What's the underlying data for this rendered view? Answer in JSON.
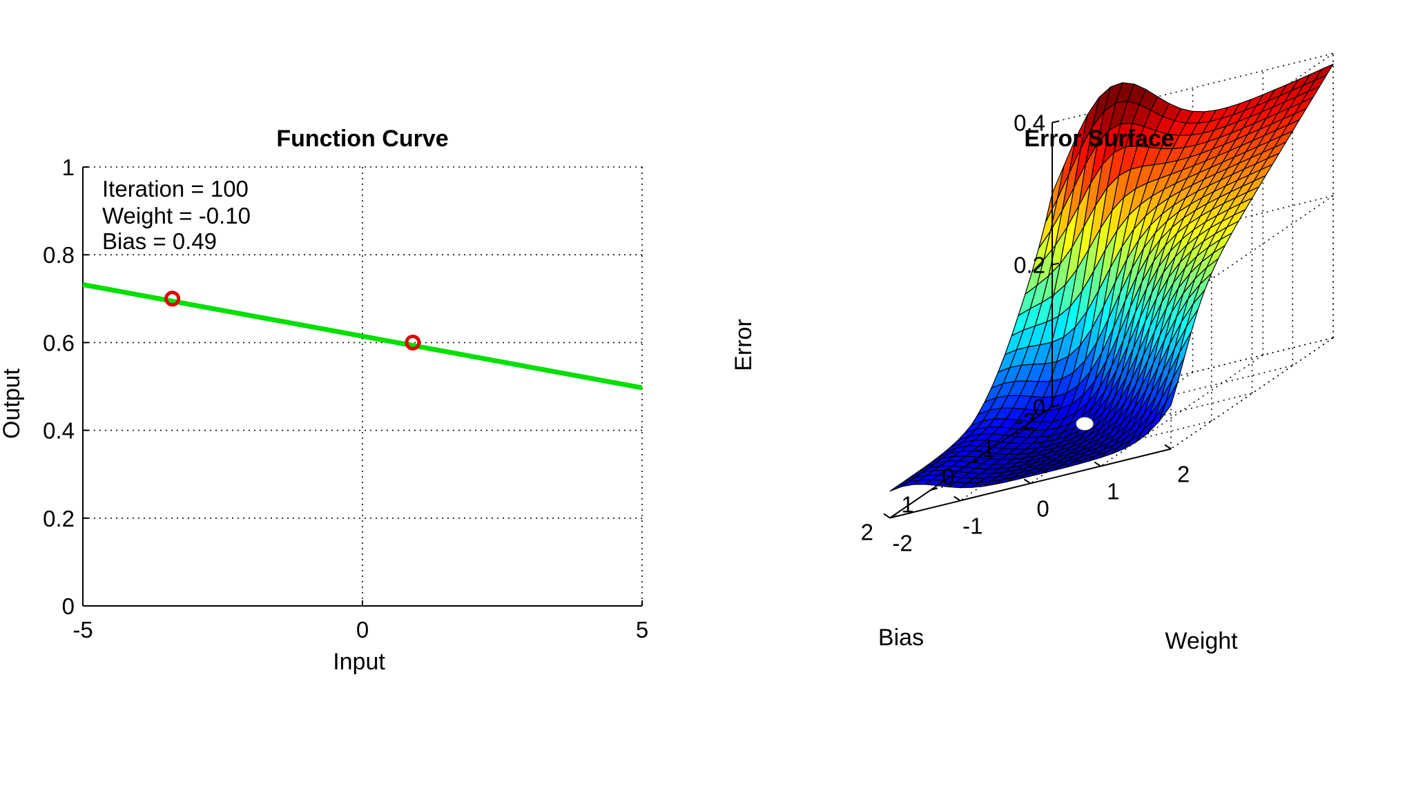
{
  "chart_data": [
    {
      "type": "line",
      "title": "Function Curve",
      "xlabel": "Input",
      "ylabel": "Output",
      "xlim": [
        -5,
        5
      ],
      "ylim": [
        0,
        1
      ],
      "x_ticks": [
        "-5",
        "0",
        "5"
      ],
      "y_ticks": [
        "0",
        "0.2",
        "0.4",
        "0.6",
        "0.8",
        "1"
      ],
      "grid": true,
      "annotations": [
        "Iteration = 100",
        "Weight = -0.10",
        "Bias = 0.49"
      ],
      "line_color": "#00e000",
      "marker_color": "#e00000",
      "series": [
        {
          "x": [
            -5,
            5
          ],
          "y": [
            0.732,
            0.497
          ]
        }
      ],
      "points": [
        {
          "x": -3.4,
          "y": 0.7
        },
        {
          "x": 0.9,
          "y": 0.6
        }
      ]
    },
    {
      "type": "surface",
      "title": "Error Surface",
      "xlabel": "Weight",
      "ylabel": "Bias",
      "zlabel": "Error",
      "xlim": [
        -2,
        2
      ],
      "ylim": [
        -2,
        2
      ],
      "zlim": [
        0,
        0.4
      ],
      "x_ticks": [
        "-2",
        "-1",
        "0",
        "1",
        "2"
      ],
      "y_ticks": [
        "-2",
        "-1",
        "0",
        "1",
        "2"
      ],
      "z_ticks": [
        "0",
        "0.2",
        "0.4"
      ],
      "colormap": "jet",
      "grid": true,
      "marker": {
        "x": -0.1,
        "y": 0.49,
        "z": 0.01,
        "color": "#ffffff"
      }
    }
  ]
}
